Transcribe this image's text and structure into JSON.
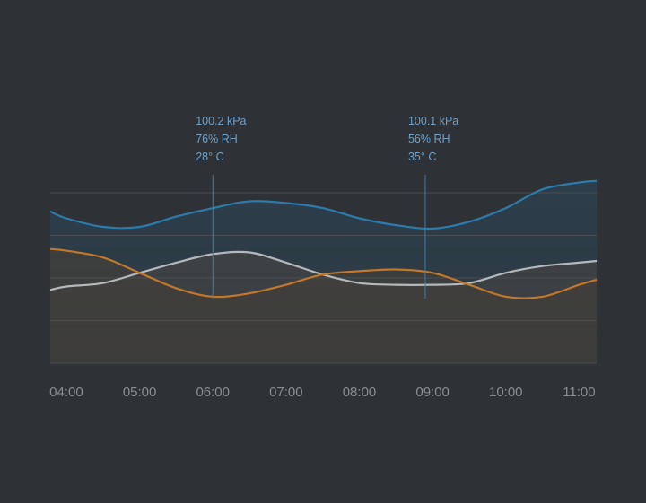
{
  "chart_data": {
    "type": "area",
    "x": [
      3.78,
      4,
      4.5,
      5,
      5.5,
      6,
      6.5,
      7,
      7.5,
      8,
      8.5,
      9,
      9.5,
      10,
      10.5,
      11,
      11.24
    ],
    "xlim": [
      3.78,
      11.24
    ],
    "xticks": [
      {
        "value": 4,
        "label": "04:00"
      },
      {
        "value": 5,
        "label": "05:00"
      },
      {
        "value": 6,
        "label": "06:00"
      },
      {
        "value": 7,
        "label": "07:00"
      },
      {
        "value": 8,
        "label": "08:00"
      },
      {
        "value": 9,
        "label": "09:00"
      },
      {
        "value": 10,
        "label": "10:00"
      },
      {
        "value": 11,
        "label": "11:00"
      }
    ],
    "ylim": [
      0,
      110
    ],
    "yticks": [
      0,
      25,
      50,
      75,
      100
    ],
    "grid": true,
    "series": [
      {
        "color": "#2c7bab",
        "fill": "#2a5f80",
        "values": [
          89,
          85,
          80,
          80,
          86,
          91,
          95,
          94,
          91,
          85,
          81,
          79,
          83,
          91,
          102,
          106,
          107
        ]
      },
      {
        "color": "#b5b8bb",
        "fill": "#6f6a63",
        "values": [
          43,
          45,
          47,
          53,
          59,
          64,
          65,
          59,
          52,
          47,
          46,
          46,
          47,
          53,
          57,
          59,
          60
        ]
      },
      {
        "color": "#c2772a",
        "fill": "#6e5d47",
        "values": [
          67,
          66,
          62,
          53,
          44,
          39,
          41,
          46,
          52,
          54,
          55,
          53,
          46,
          39,
          39,
          46,
          49
        ]
      }
    ],
    "annotations": [
      {
        "x": 6,
        "lines": [
          "100.2 kPa",
          "76% RH",
          "28° C"
        ]
      },
      {
        "x": 8.9,
        "lines": [
          "100.1 kPa",
          "56% RH",
          "35° C"
        ]
      }
    ]
  }
}
